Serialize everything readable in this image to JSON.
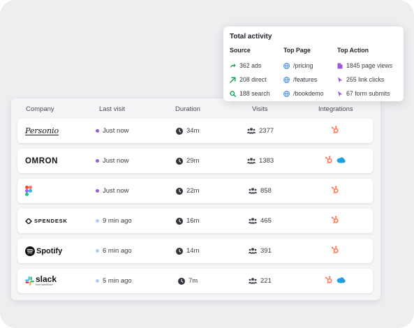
{
  "colors": {
    "accent_purple": "#9b59d8",
    "accent_lightblue": "#a9cdf3",
    "hubspot_orange": "#ff7a59",
    "salesforce_blue": "#21a0df",
    "green": "#1aa35c",
    "globe_blue": "#4a90e2"
  },
  "table": {
    "headers": {
      "company": "Company",
      "last_visit": "Last visit",
      "duration": "Duration",
      "visits": "Visits",
      "integrations": "Integrations"
    },
    "rows": [
      {
        "company": "Personio",
        "company_display": "Personio",
        "status": "purple",
        "last_visit": "Just now",
        "duration": "34m",
        "visits": "2377",
        "integrations": [
          "hubspot-icon"
        ]
      },
      {
        "company": "OMRON",
        "company_display": "OMRON",
        "status": "purple",
        "last_visit": "Just now",
        "duration": "29m",
        "visits": "1383",
        "integrations": [
          "hubspot-icon",
          "salesforce-icon"
        ]
      },
      {
        "company": "Figma",
        "company_display": "",
        "status": "purple",
        "last_visit": "Just now",
        "duration": "22m",
        "visits": "858",
        "integrations": [
          "hubspot-icon"
        ]
      },
      {
        "company": "Spendesk",
        "company_display": "SPENDESK",
        "status": "lightblue",
        "last_visit": "9 min ago",
        "duration": "16m",
        "visits": "465",
        "integrations": [
          "hubspot-icon"
        ]
      },
      {
        "company": "Spotify",
        "company_display": "Spotify",
        "status": "lightblue",
        "last_visit": "6 min ago",
        "duration": "14m",
        "visits": "391",
        "integrations": [
          "hubspot-icon"
        ]
      },
      {
        "company": "slack",
        "company_display": "slack",
        "company_sub": "from salesforce",
        "status": "lightblue",
        "last_visit": "5 min ago",
        "duration": "7m",
        "visits": "221",
        "integrations": [
          "hubspot-icon",
          "salesforce-icon"
        ]
      }
    ]
  },
  "popup": {
    "title": "Total activity",
    "source": {
      "header": "Source",
      "items": [
        {
          "icon": "share-arrow-icon",
          "label": "362 ads"
        },
        {
          "icon": "arrow-up-right-icon",
          "label": "208 direct"
        },
        {
          "icon": "search-icon",
          "label": "188 search"
        }
      ]
    },
    "top_page": {
      "header": "Top Page",
      "items": [
        {
          "icon": "globe-icon",
          "label": "/pricing"
        },
        {
          "icon": "globe-icon",
          "label": "/features"
        },
        {
          "icon": "globe-icon",
          "label": "/bookdemo"
        }
      ]
    },
    "top_action": {
      "header": "Top Action",
      "items": [
        {
          "icon": "document-icon",
          "label": "1845 page views"
        },
        {
          "icon": "cursor-icon",
          "label": "255 link clicks"
        },
        {
          "icon": "cursor-icon",
          "label": "67 form submits"
        }
      ]
    }
  }
}
